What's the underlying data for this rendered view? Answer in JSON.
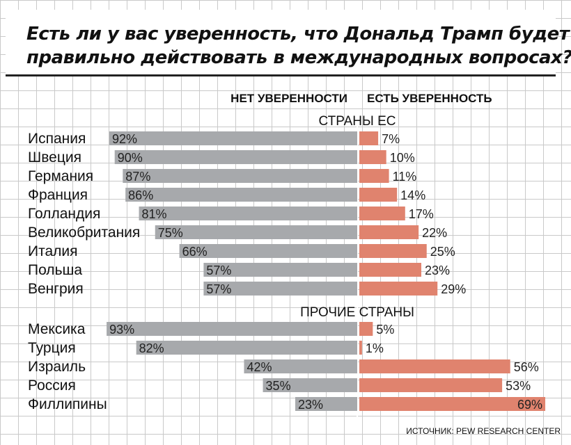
{
  "title": {
    "line1": "Есть ли у вас уверенность, что Дональд Трамп будет",
    "line2": "правильно действовать в международных вопросах?"
  },
  "chart_data": {
    "type": "bar",
    "orientation": "horizontal-diverging",
    "column_headers": {
      "left": "НЕТ УВЕРЕННОСТИ",
      "right": "ЕСТЬ УВЕРЕННОСТЬ"
    },
    "value_suffix": "%",
    "groups": [
      {
        "label": "СТРАНЫ ЕС",
        "categories": [
          "Испания",
          "Швеция",
          "Германия",
          "Франция",
          "Голландия",
          "Великобритания",
          "Италия",
          "Польша",
          "Венгрия"
        ],
        "not_confident": [
          92,
          90,
          87,
          86,
          81,
          75,
          66,
          57,
          57
        ],
        "confident": [
          7,
          10,
          11,
          14,
          17,
          22,
          25,
          23,
          29
        ]
      },
      {
        "label": "ПРОЧИЕ СТРАНЫ",
        "categories": [
          "Мексика",
          "Турция",
          "Израиль",
          "Россия",
          "Филлипины"
        ],
        "not_confident": [
          93,
          82,
          42,
          35,
          23
        ],
        "confident": [
          5,
          1,
          56,
          53,
          69
        ]
      }
    ],
    "colors": {
      "not_confident": "#a7a9ac",
      "confident": "#e0836e"
    },
    "source": "ИСТОЧНИК: PEW RESEARCH CENTER"
  }
}
